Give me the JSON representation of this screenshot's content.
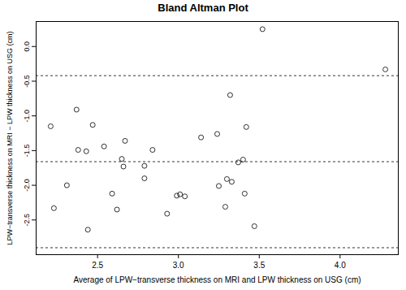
{
  "chart_data": {
    "type": "scatter",
    "title": "Bland Altman Plot",
    "x_label": "Average of LPW−transverse thickness on MRI and LPW thickness on USG (cm)",
    "y_label": "LPW−transverse thickness on MRI − LPW thickness on USG (cm)",
    "x": [
      2.21,
      2.23,
      2.31,
      2.37,
      2.38,
      2.43,
      2.44,
      2.47,
      2.54,
      2.59,
      2.62,
      2.65,
      2.66,
      2.67,
      2.79,
      2.79,
      2.84,
      2.93,
      2.99,
      3.01,
      3.04,
      3.14,
      3.24,
      3.25,
      3.29,
      3.3,
      3.32,
      3.33,
      3.37,
      3.4,
      3.41,
      3.42,
      3.47,
      3.52,
      4.28
    ],
    "values": [
      -1.15,
      -2.33,
      -2.0,
      -0.91,
      -1.49,
      -1.51,
      -2.64,
      -1.13,
      -1.44,
      -2.12,
      -2.35,
      -1.62,
      -1.73,
      -1.36,
      -1.72,
      -1.9,
      -1.49,
      -2.41,
      -2.15,
      -2.13,
      -2.16,
      -1.31,
      -1.26,
      -2.01,
      -2.31,
      -1.91,
      -0.7,
      -1.95,
      -1.67,
      -1.63,
      -2.12,
      -1.16,
      -2.59,
      0.25,
      -0.33
    ],
    "color": "#000000",
    "marker": "open circle",
    "reference_lines": {
      "values": [
        -0.42,
        -1.66,
        -2.9
      ],
      "line_style": "dashed",
      "color": "#000000"
    },
    "xlim": [
      2.12,
      4.36
    ],
    "xticks": [
      2.5,
      {
        "value": 3,
        "label": "3.0"
      },
      3.5,
      {
        "value": 4,
        "label": "4.0"
      }
    ],
    "ylim": [
      -3.0,
      0.36
    ],
    "yticks": [
      {
        "value": 0,
        "label": "0.0"
      },
      -0.5,
      {
        "value": -1,
        "label": "-1.0"
      },
      -1.5,
      {
        "value": -2,
        "label": "-2.0"
      },
      -2.5
    ],
    "grid": false
  }
}
